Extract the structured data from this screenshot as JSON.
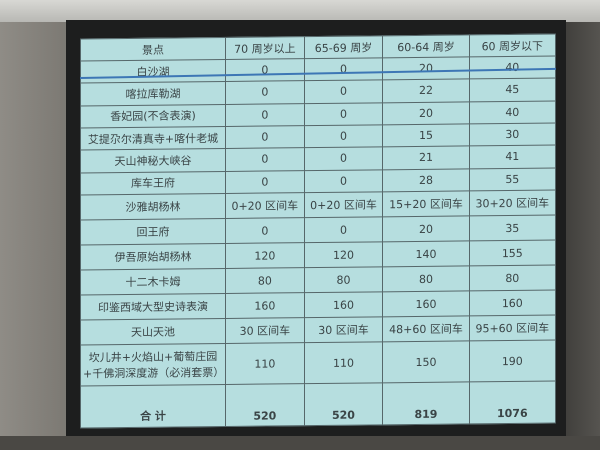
{
  "table": {
    "headers": [
      "景点",
      "70 周岁以上",
      "65-69 周岁",
      "60-64 周岁",
      "60 周岁以下"
    ],
    "rows": [
      [
        "白沙湖",
        "0",
        "0",
        "20",
        "40"
      ],
      [
        "喀拉库勒湖",
        "0",
        "0",
        "22",
        "45"
      ],
      [
        "香妃园(不含表演)",
        "0",
        "0",
        "20",
        "40"
      ],
      [
        "艾提尕尔清真寺+喀什老城",
        "0",
        "0",
        "15",
        "30"
      ],
      [
        "天山神秘大峡谷",
        "0",
        "0",
        "21",
        "41"
      ],
      [
        "库车王府",
        "0",
        "0",
        "28",
        "55"
      ],
      [
        "沙雅胡杨林",
        "0+20 区间车",
        "0+20 区间车",
        "15+20 区间车",
        "30+20 区间车"
      ],
      [
        "回王府",
        "0",
        "0",
        "20",
        "35"
      ],
      [
        "伊吾原始胡杨林",
        "120",
        "120",
        "140",
        "155"
      ],
      [
        "十二木卡姆",
        "80",
        "80",
        "80",
        "80"
      ],
      [
        "印鉴西域大型史诗表演",
        "160",
        "160",
        "160",
        "160"
      ],
      [
        "天山天池",
        "30 区间车",
        "30 区间车",
        "48+60 区间车",
        "95+60 区间车"
      ],
      [
        "坎儿井+火焰山+葡萄庄园+千佛洞深度游（必消套票）",
        "110",
        "110",
        "150",
        "190"
      ]
    ],
    "total": [
      "合 计",
      "520",
      "520",
      "819",
      "1076"
    ]
  },
  "colors": {
    "table_bg": "#b6dedf",
    "grid": "#56676a",
    "highlight_line": "#3d76b5"
  }
}
